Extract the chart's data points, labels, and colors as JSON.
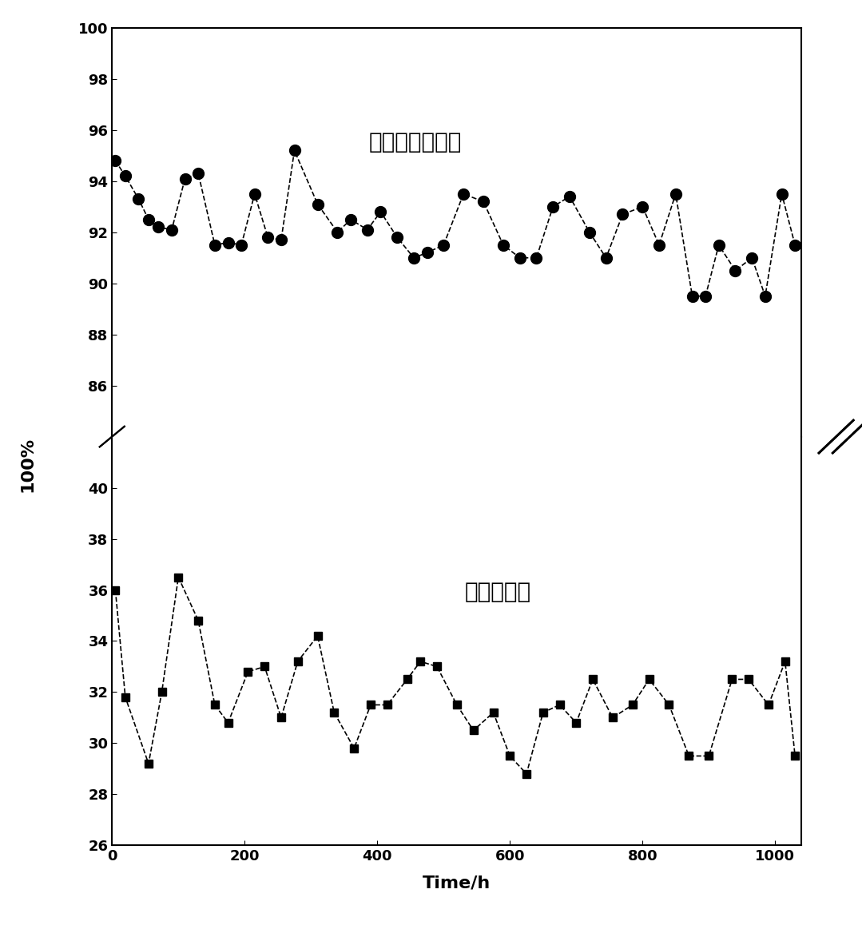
{
  "selectivity_x": [
    5,
    20,
    40,
    55,
    70,
    90,
    110,
    130,
    155,
    175,
    195,
    215,
    235,
    255,
    275,
    310,
    340,
    360,
    385,
    405,
    430,
    455,
    475,
    500,
    530,
    560,
    590,
    615,
    640,
    665,
    690,
    720,
    745,
    770,
    800,
    825,
    850,
    875,
    895,
    915,
    940,
    965,
    985,
    1010,
    1030
  ],
  "selectivity_y": [
    94.8,
    94.2,
    93.3,
    92.5,
    92.2,
    92.1,
    94.1,
    94.3,
    91.5,
    91.6,
    91.5,
    93.5,
    91.8,
    91.7,
    95.2,
    93.1,
    92.0,
    92.5,
    92.1,
    92.8,
    91.8,
    91.0,
    91.2,
    91.5,
    93.5,
    93.2,
    91.5,
    91.0,
    91.0,
    93.0,
    93.4,
    92.0,
    91.0,
    92.7,
    93.0,
    91.5,
    93.5,
    89.5,
    89.5,
    91.5,
    90.5,
    91.0,
    89.5,
    93.5,
    91.5
  ],
  "conversion_x": [
    5,
    20,
    55,
    75,
    100,
    130,
    155,
    175,
    205,
    230,
    255,
    280,
    310,
    335,
    365,
    390,
    415,
    445,
    465,
    490,
    520,
    545,
    575,
    600,
    625,
    650,
    675,
    700,
    725,
    755,
    785,
    810,
    840,
    870,
    900,
    935,
    960,
    990,
    1015,
    1030
  ],
  "conversion_y": [
    36.0,
    31.8,
    29.2,
    32.0,
    36.5,
    34.8,
    31.5,
    30.8,
    32.8,
    33.0,
    31.0,
    33.2,
    34.2,
    31.2,
    29.8,
    31.5,
    31.5,
    32.5,
    33.2,
    33.0,
    31.5,
    30.5,
    31.2,
    29.5,
    28.8,
    31.2,
    31.5,
    30.8,
    32.5,
    31.0,
    31.5,
    32.5,
    31.5,
    29.5,
    29.5,
    32.5,
    32.5,
    31.5,
    33.2,
    29.5
  ],
  "xlabel": "Time/h",
  "ylabel": "100%",
  "label_selectivity": "异佛尔酮选择性",
  "label_conversion": "丙酮转化率",
  "upper_ylim": [
    84,
    100
  ],
  "lower_ylim": [
    26,
    42
  ],
  "upper_yticks": [
    86,
    88,
    90,
    92,
    94,
    96,
    98,
    100
  ],
  "lower_yticks": [
    26,
    28,
    30,
    32,
    34,
    36,
    38,
    40
  ],
  "xlim": [
    0,
    1040
  ],
  "xticks": [
    0,
    200,
    400,
    600,
    800,
    1000
  ],
  "upper_ytick_labels": [
    "86",
    "88",
    "90",
    "92",
    "94",
    "96",
    "98",
    "100"
  ],
  "lower_ytick_labels": [
    "26",
    "28",
    "30",
    "32",
    "34",
    "36",
    "38",
    "40"
  ],
  "line_color": "black",
  "marker_selectivity": "o",
  "marker_conversion": "s",
  "marker_size_selectivity": 10,
  "marker_size_conversion": 7,
  "linestyle": "--",
  "linewidth": 1.2
}
